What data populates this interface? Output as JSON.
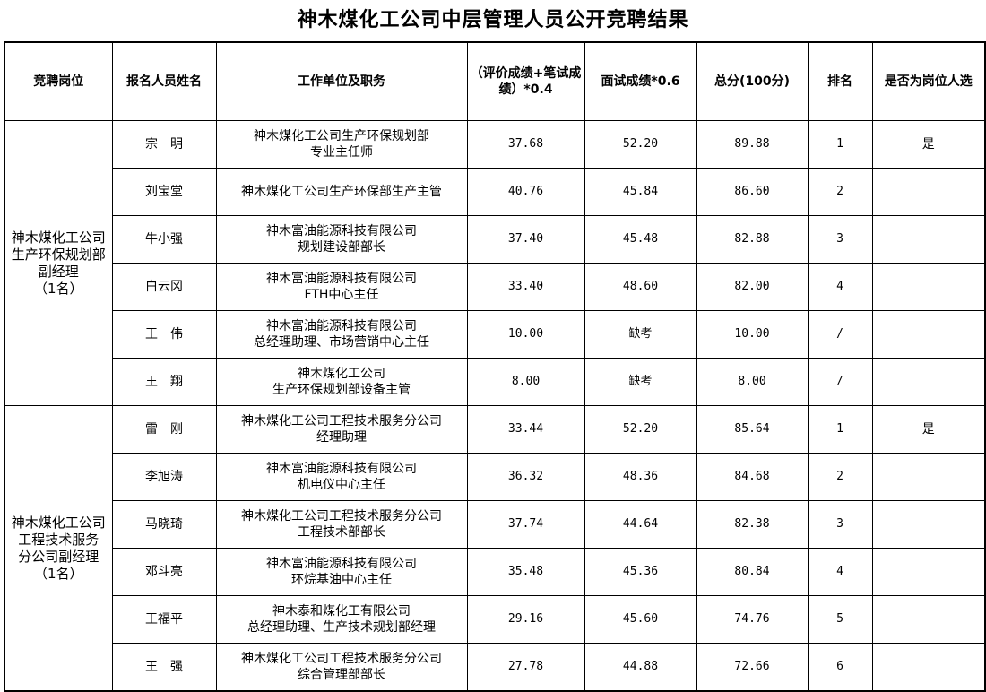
{
  "title": "神木煤化工公司中层管理人员公开竞聘结果",
  "headers": [
    "竞聘岗位",
    "报名人员姓名",
    "工作单位及职务",
    "（评价成绩+笔试成绩）*0.4",
    "面试成绩*0.6",
    "总分(100分)",
    "排名",
    "是否为岗位人选"
  ],
  "groups": [
    {
      "position": [
        "神木煤化工公司",
        "生产环保规划部",
        "副经理",
        "（1名）"
      ],
      "rows": [
        {
          "name": "宗　明",
          "unit": [
            "神木煤化工公司生产环保规划部",
            "专业主任师"
          ],
          "score1": "37.68",
          "score2": "52.20",
          "total": "89.88",
          "rank": "1",
          "selected": "是"
        },
        {
          "name": "刘宝堂",
          "unit": [
            "神木煤化工公司生产环保部生产主管"
          ],
          "score1": "40.76",
          "score2": "45.84",
          "total": "86.60",
          "rank": "2",
          "selected": ""
        },
        {
          "name": "牛小强",
          "unit": [
            "神木富油能源科技有限公司",
            "规划建设部部长"
          ],
          "score1": "37.40",
          "score2": "45.48",
          "total": "82.88",
          "rank": "3",
          "selected": ""
        },
        {
          "name": "白云冈",
          "unit": [
            "神木富油能源科技有限公司",
            "FTH中心主任"
          ],
          "score1": "33.40",
          "score2": "48.60",
          "total": "82.00",
          "rank": "4",
          "selected": ""
        },
        {
          "name": "王　伟",
          "unit": [
            "神木富油能源科技有限公司",
            "总经理助理、市场营销中心主任"
          ],
          "score1": "10.00",
          "score2": "缺考",
          "total": "10.00",
          "rank": "/",
          "selected": ""
        },
        {
          "name": "王　翔",
          "unit": [
            "神木煤化工公司",
            "生产环保规划部设备主管"
          ],
          "score1": "8.00",
          "score2": "缺考",
          "total": "8.00",
          "rank": "/",
          "selected": ""
        }
      ]
    },
    {
      "position": [
        "神木煤化工公司",
        "工程技术服务",
        "分公司副经理",
        "（1名）"
      ],
      "rows": [
        {
          "name": "雷　刚",
          "unit": [
            "神木煤化工公司工程技术服务分公司",
            "经理助理"
          ],
          "score1": "33.44",
          "score2": "52.20",
          "total": "85.64",
          "rank": "1",
          "selected": "是"
        },
        {
          "name": "李旭涛",
          "unit": [
            "神木富油能源科技有限公司",
            "机电仪中心主任"
          ],
          "score1": "36.32",
          "score2": "48.36",
          "total": "84.68",
          "rank": "2",
          "selected": ""
        },
        {
          "name": "马晓琦",
          "unit": [
            "神木煤化工公司工程技术服务分公司",
            "工程技术部部长"
          ],
          "score1": "37.74",
          "score2": "44.64",
          "total": "82.38",
          "rank": "3",
          "selected": ""
        },
        {
          "name": "邓斗亮",
          "unit": [
            "神木富油能源科技有限公司",
            "环烷基油中心主任"
          ],
          "score1": "35.48",
          "score2": "45.36",
          "total": "80.84",
          "rank": "4",
          "selected": ""
        },
        {
          "name": "王福平",
          "unit": [
            "神木泰和煤化工有限公司",
            "总经理助理、生产技术规划部经理"
          ],
          "score1": "29.16",
          "score2": "45.60",
          "total": "74.76",
          "rank": "5",
          "selected": ""
        },
        {
          "name": "王　强",
          "unit": [
            "神木煤化工公司工程技术服务分公司",
            "综合管理部部长"
          ],
          "score1": "27.78",
          "score2": "44.88",
          "total": "72.66",
          "rank": "6",
          "selected": ""
        }
      ]
    }
  ]
}
